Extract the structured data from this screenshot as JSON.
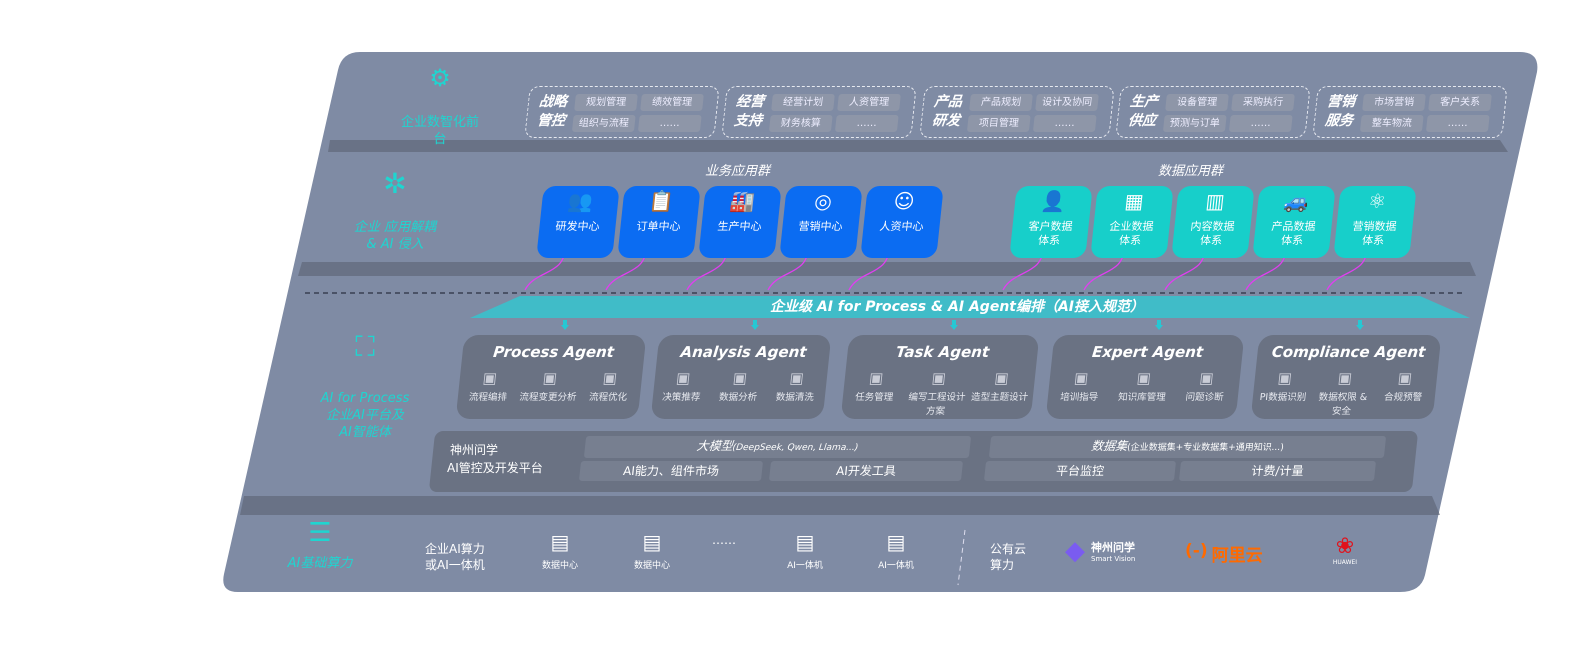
{
  "colors": {
    "panel": "#7f8ba4",
    "business_card": "#0b6cf2",
    "data_card": "#17cfca",
    "accent_cyan": "#1fd5d0",
    "link_arrow": "#e03ff0"
  },
  "layers": {
    "front": {
      "label": "企业数智化前台",
      "icon": "brain-icon"
    },
    "apps": {
      "label1": "企业 应用解耦",
      "label2": "& AI 侵入",
      "icon": "molecule-icon"
    },
    "ai": {
      "label1": "AI for Process",
      "label2": "企业AI平台及",
      "label3": "AI智能体",
      "icon": "face-scan-icon"
    },
    "compute": {
      "label": "AI基础算力",
      "icon": "database-icon"
    }
  },
  "front_groups": [
    {
      "title": "战略管控",
      "chips": [
        "规划管理",
        "绩效管理",
        "组织与流程",
        "……"
      ]
    },
    {
      "title": "经营支持",
      "chips": [
        "经营计划",
        "人资管理",
        "财务核算",
        "……"
      ]
    },
    {
      "title": "产品研发",
      "chips": [
        "产品规划",
        "设计及协同",
        "项目管理",
        "……"
      ]
    },
    {
      "title": "生产供应",
      "chips": [
        "设备管理",
        "采购执行",
        "预测与订单",
        "……"
      ]
    },
    {
      "title": "营销服务",
      "chips": [
        "市场营销",
        "客户关系",
        "整车物流",
        "……"
      ]
    }
  ],
  "business_apps": {
    "title": "业务应用群",
    "items": [
      {
        "label": "研发中心",
        "icon": "team-icon"
      },
      {
        "label": "订单中心",
        "icon": "clipboard-icon"
      },
      {
        "label": "生产中心",
        "icon": "factory-icon"
      },
      {
        "label": "营销中心",
        "icon": "target-icon"
      },
      {
        "label": "人资中心",
        "icon": "person-icon"
      }
    ]
  },
  "data_apps": {
    "title": "数据应用群",
    "items": [
      {
        "label": "客户数据体系",
        "icon": "user-icon"
      },
      {
        "label": "企业数据体系",
        "icon": "building-icon"
      },
      {
        "label": "内容数据体系",
        "icon": "books-icon"
      },
      {
        "label": "产品数据体系",
        "icon": "car-icon"
      },
      {
        "label": "营销数据体系",
        "icon": "atom-icon"
      }
    ]
  },
  "orchestration": "企业级 AI for Process & AI Agent编排（AI接入规范）",
  "agents": [
    {
      "title": "Process Agent",
      "items": [
        "流程编排",
        "流程变更分析",
        "流程优化"
      ]
    },
    {
      "title": "Analysis Agent",
      "items": [
        "决策推荐",
        "数据分析",
        "数据清洗"
      ]
    },
    {
      "title": "Task Agent",
      "items": [
        "任务管理",
        "编写工程设计方案",
        "造型主题设计"
      ]
    },
    {
      "title": "Expert Agent",
      "items": [
        "培训指导",
        "知识库管理",
        "问题诊断"
      ]
    },
    {
      "title": "Compliance Agent",
      "items": [
        "PI数据识别",
        "数据权限 & 安全",
        "合规预警"
      ]
    }
  ],
  "platform": {
    "name1": "神州问学",
    "name2": "AI管控及开发平台",
    "llm": "大模型",
    "llm_note": "(DeepSeek, Qwen, Llama...)",
    "market": "AI能力、组件市场",
    "devtools": "AI开发工具",
    "dataset": "数据集",
    "dataset_note": "(企业数据集+专业数据集+通用知识...)",
    "monitor": "平台监控",
    "billing": "计费/计量"
  },
  "compute": {
    "label1": "企业AI算力",
    "label2": "或AI一体机",
    "servers": [
      "数据中心",
      "数据中心",
      "AI一体机",
      "AI一体机"
    ],
    "ellipsis": "……",
    "public1": "公有云",
    "public2": "算力",
    "vendors": [
      {
        "name": "神州问学",
        "sub": "Smart Vision"
      },
      {
        "name": "阿里云",
        "mark": "(-)"
      },
      {
        "name": "HUAWEI"
      }
    ]
  }
}
